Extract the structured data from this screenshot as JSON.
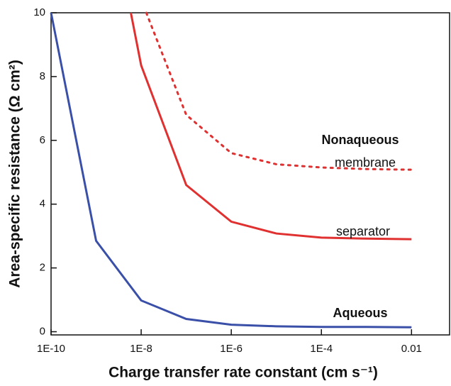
{
  "chart_data": {
    "type": "line",
    "xlabel": "Charge transfer rate constant (cm s⁻¹)",
    "ylabel": "Area-specific resistance (Ω cm²)",
    "xscale": "log",
    "xlim": [
      1e-10,
      0.07
    ],
    "ylim": [
      -0.1,
      10
    ],
    "xticks": [
      {
        "value": 1e-10,
        "label": "1E-10"
      },
      {
        "value": 1e-08,
        "label": "1E-8"
      },
      {
        "value": 1e-06,
        "label": "1E-6"
      },
      {
        "value": 0.0001,
        "label": "1E-4"
      },
      0.01
    ],
    "yticks": [
      0,
      2,
      4,
      6,
      8,
      10
    ],
    "series": [
      {
        "name": "Aqueous",
        "color": "#3a4fa8",
        "style": "solid",
        "x": [
          1e-10,
          1e-09,
          1e-08,
          1e-07,
          1e-06,
          1e-05,
          0.0001,
          0.001,
          0.01
        ],
        "values": [
          10,
          2.85,
          0.98,
          0.4,
          0.22,
          0.17,
          0.15,
          0.15,
          0.14
        ]
      },
      {
        "name": "separator",
        "color": "#e03030",
        "style": "solid",
        "x": [
          5.9e-09,
          1e-08,
          1e-07,
          1e-06,
          1e-05,
          0.0001,
          0.001,
          0.01
        ],
        "values": [
          10,
          8.35,
          4.6,
          3.45,
          3.08,
          2.95,
          2.92,
          2.9
        ]
      },
      {
        "name": "membrane",
        "color": "#e03030",
        "style": "dotted",
        "x": [
          1.3e-08,
          1e-07,
          1e-06,
          1e-05,
          0.0001,
          0.001,
          0.01
        ],
        "values": [
          10,
          6.8,
          5.6,
          5.25,
          5.15,
          5.1,
          5.08
        ]
      }
    ],
    "annotations": [
      {
        "text": "Nonaqueous",
        "bold": true
      },
      {
        "text": "membrane",
        "bold": false
      },
      {
        "text": "separator",
        "bold": false
      },
      {
        "text": "Aqueous",
        "bold": true
      }
    ]
  }
}
